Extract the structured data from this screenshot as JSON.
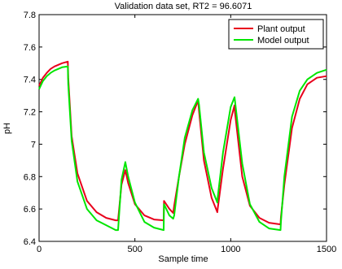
{
  "chart_data": {
    "type": "line",
    "title": "Validation data set, RT2 = 96.6071",
    "xlabel": "Sample time",
    "ylabel": "pH",
    "xlim": [
      0,
      1500
    ],
    "ylim": [
      6.4,
      7.8
    ],
    "xticks": [
      "0",
      "500",
      "1000",
      "1500"
    ],
    "yticks": [
      "6.4",
      "6.6",
      "6.8",
      "7",
      "7.2",
      "7.4",
      "7.6",
      "7.8"
    ],
    "grid": false,
    "legend_position": "top-right",
    "series": [
      {
        "name": "Plant output",
        "color": "#e8001c",
        "x": [
          0,
          20,
          40,
          60,
          80,
          100,
          120,
          150,
          152,
          170,
          200,
          250,
          300,
          350,
          400,
          412,
          430,
          450,
          465,
          500,
          550,
          600,
          650,
          652,
          680,
          700,
          705,
          730,
          760,
          800,
          830,
          835,
          860,
          900,
          930,
          932,
          960,
          1000,
          1020,
          1022,
          1060,
          1100,
          1150,
          1200,
          1260,
          1262,
          1280,
          1320,
          1360,
          1400,
          1450,
          1500
        ],
        "y": [
          7.36,
          7.41,
          7.44,
          7.465,
          7.48,
          7.49,
          7.5,
          7.51,
          7.41,
          7.05,
          6.82,
          6.65,
          6.58,
          6.545,
          6.53,
          6.53,
          6.75,
          6.84,
          6.76,
          6.63,
          6.56,
          6.535,
          6.53,
          6.65,
          6.6,
          6.575,
          6.62,
          6.8,
          7.0,
          7.18,
          7.27,
          7.2,
          6.9,
          6.67,
          6.58,
          6.6,
          6.85,
          7.15,
          7.24,
          7.2,
          6.8,
          6.62,
          6.545,
          6.515,
          6.505,
          6.55,
          6.75,
          7.1,
          7.28,
          7.37,
          7.41,
          7.42
        ]
      },
      {
        "name": "Model output",
        "color": "#00e600",
        "x": [
          0,
          20,
          40,
          60,
          80,
          100,
          120,
          150,
          152,
          170,
          200,
          250,
          300,
          350,
          400,
          412,
          430,
          450,
          465,
          500,
          550,
          600,
          650,
          652,
          680,
          700,
          705,
          730,
          760,
          800,
          830,
          835,
          860,
          900,
          930,
          932,
          960,
          1000,
          1020,
          1022,
          1060,
          1100,
          1150,
          1200,
          1260,
          1262,
          1280,
          1320,
          1360,
          1400,
          1450,
          1500
        ],
        "y": [
          7.34,
          7.39,
          7.42,
          7.44,
          7.455,
          7.465,
          7.475,
          7.48,
          7.37,
          7.02,
          6.77,
          6.6,
          6.53,
          6.5,
          6.47,
          6.47,
          6.78,
          6.89,
          6.8,
          6.64,
          6.52,
          6.485,
          6.47,
          6.63,
          6.56,
          6.54,
          6.56,
          6.8,
          7.04,
          7.21,
          7.28,
          7.24,
          6.95,
          6.73,
          6.64,
          6.67,
          6.95,
          7.23,
          7.29,
          7.27,
          6.88,
          6.63,
          6.52,
          6.48,
          6.47,
          6.52,
          6.8,
          7.17,
          7.33,
          7.4,
          7.44,
          7.46
        ]
      }
    ]
  }
}
